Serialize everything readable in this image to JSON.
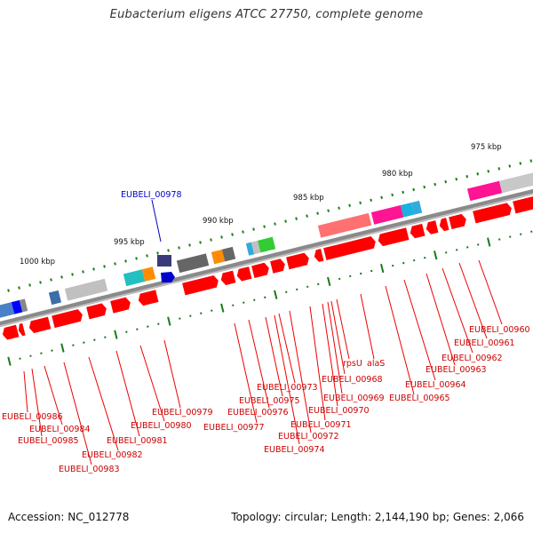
{
  "title": "Eubacterium eligens ATCC 27750, complete genome",
  "footer": {
    "accession_label": "Accession: NC_012778",
    "topology_label": "Topology: circular; Length: 2,144,190 bp; Genes: 2,066"
  },
  "colors": {
    "backbone": "#8a8a8a",
    "gene_fill": "#ff0000",
    "label_line": "#ee0000",
    "highlight": "#0000cc",
    "tick": "#1a7a1a"
  },
  "scale": {
    "units": "kbp",
    "labels": [
      "975 kbp",
      "980 kbp",
      "985 kbp",
      "990 kbp",
      "995 kbp",
      "1000 kbp"
    ]
  },
  "highlighted_gene": "EUBELI_00978",
  "gene_labels": [
    "EUBELI_00960",
    "EUBELI_00961",
    "EUBELI_00962",
    "EUBELI_00963",
    "EUBELI_00964",
    "EUBELI_00965",
    "alaS",
    "rpsU",
    "EUBELI_00968",
    "EUBELI_00969",
    "EUBELI_00970",
    "EUBELI_00971",
    "EUBELI_00972",
    "EUBELI_00973",
    "EUBELI_00974",
    "EUBELI_00975",
    "EUBELI_00976",
    "EUBELI_00977",
    "EUBELI_00979",
    "EUBELI_00980",
    "EUBELI_00981",
    "EUBELI_00982",
    "EUBELI_00983",
    "EUBELI_00984",
    "EUBELI_00985",
    "EUBELI_00986"
  ]
}
